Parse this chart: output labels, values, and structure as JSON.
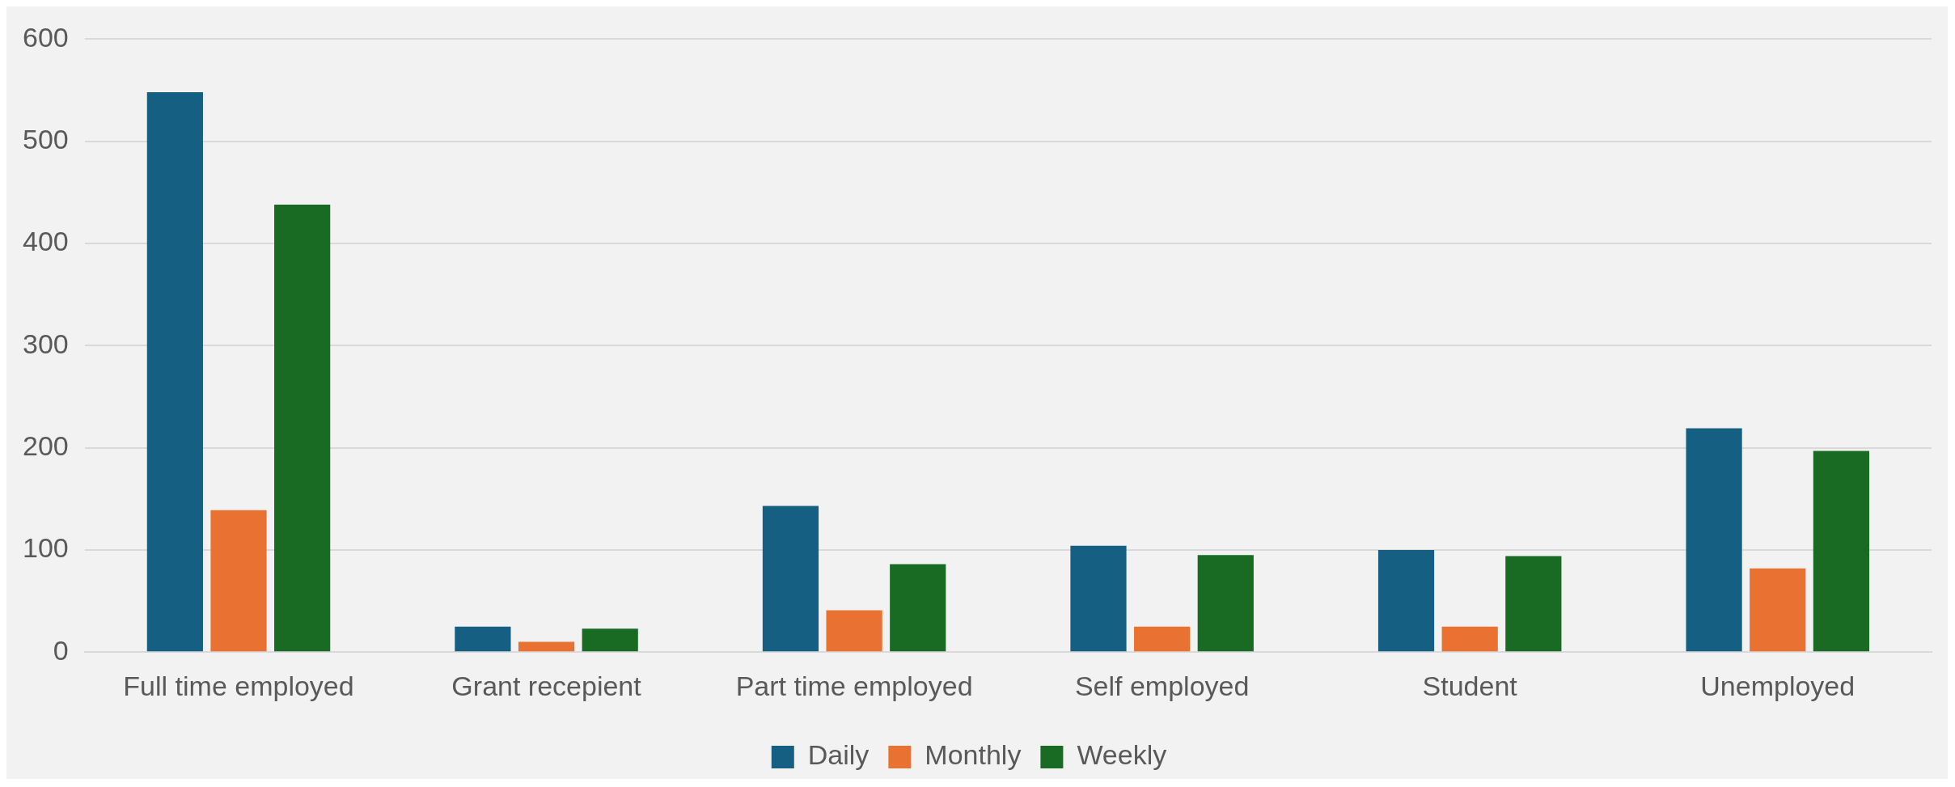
{
  "chart_data": {
    "type": "bar",
    "categories": [
      "Full time employed",
      "Grant recepient",
      "Part time employed",
      "Self employed",
      "Student",
      "Unemployed"
    ],
    "series": [
      {
        "name": "Daily",
        "color": "#156082",
        "values": [
          548,
          25,
          143,
          104,
          100,
          219
        ]
      },
      {
        "name": "Monthly",
        "color": "#e97132",
        "values": [
          139,
          10,
          41,
          25,
          25,
          82
        ]
      },
      {
        "name": "Weekly",
        "color": "#196b24",
        "values": [
          438,
          23,
          86,
          95,
          94,
          197
        ]
      }
    ],
    "ylim": [
      0,
      600
    ],
    "yticks": [
      0,
      100,
      200,
      300,
      400,
      500,
      600
    ],
    "grid": "y",
    "legend": "bottom"
  }
}
